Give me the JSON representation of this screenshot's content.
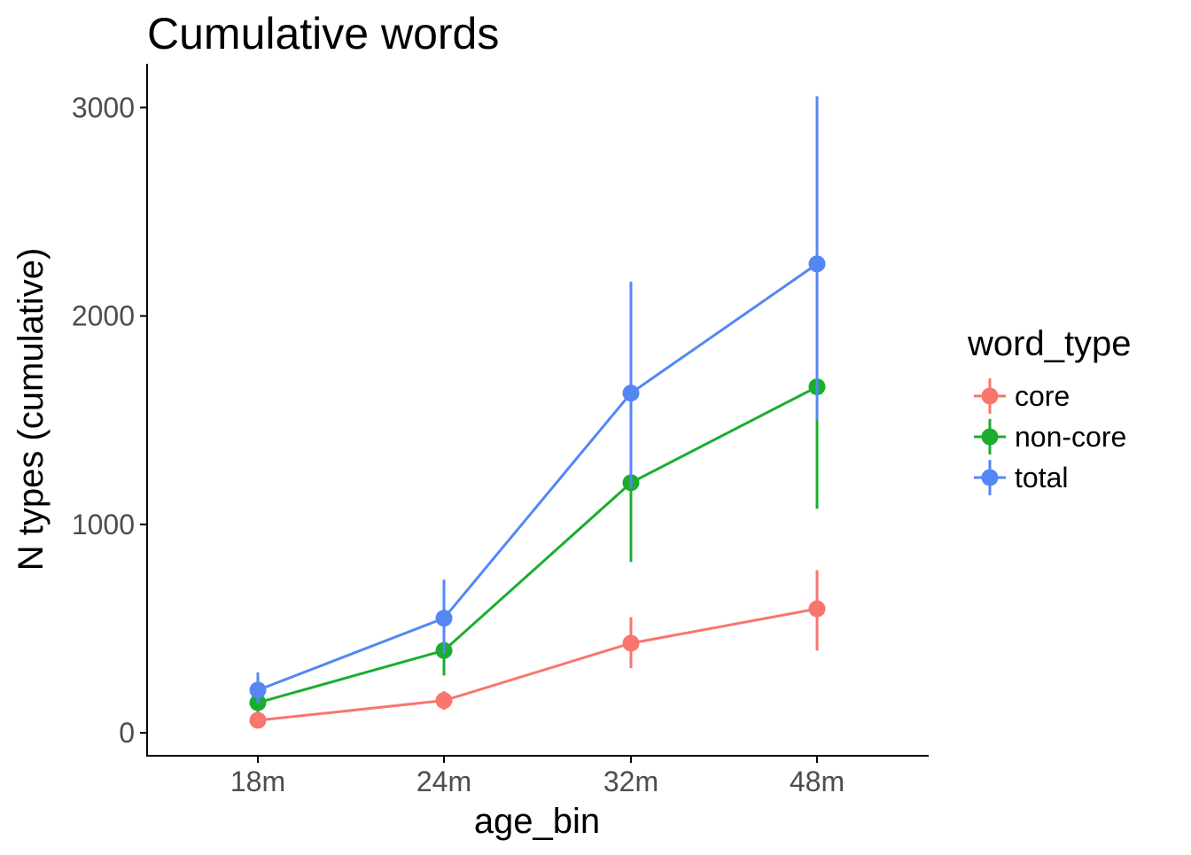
{
  "chart_data": {
    "type": "line",
    "title": "Cumulative words",
    "xlabel": "age_bin",
    "ylabel": "N types (cumulative)",
    "categories": [
      "18m",
      "24m",
      "32m",
      "48m"
    ],
    "y_ticks": [
      0,
      1000,
      2000,
      3000
    ],
    "ylim": [
      -110,
      3210
    ],
    "grid": false,
    "legend": {
      "title": "word_type",
      "placement": "right"
    },
    "series": [
      {
        "name": "core",
        "color": "#F8766D",
        "values": [
          60,
          155,
          430,
          595
        ],
        "lower": [
          40,
          110,
          310,
          395
        ],
        "upper": [
          80,
          200,
          555,
          780
        ]
      },
      {
        "name": "non-core",
        "color": "#1CAD30",
        "values": [
          145,
          395,
          1200,
          1660
        ],
        "lower": [
          100,
          275,
          820,
          1075
        ],
        "upper": [
          195,
          520,
          1580,
          2240
        ]
      },
      {
        "name": "total",
        "color": "#5487F4",
        "values": [
          205,
          550,
          1630,
          2250
        ],
        "lower": [
          140,
          380,
          1175,
          1500
        ],
        "upper": [
          290,
          735,
          2165,
          3055
        ]
      }
    ]
  }
}
